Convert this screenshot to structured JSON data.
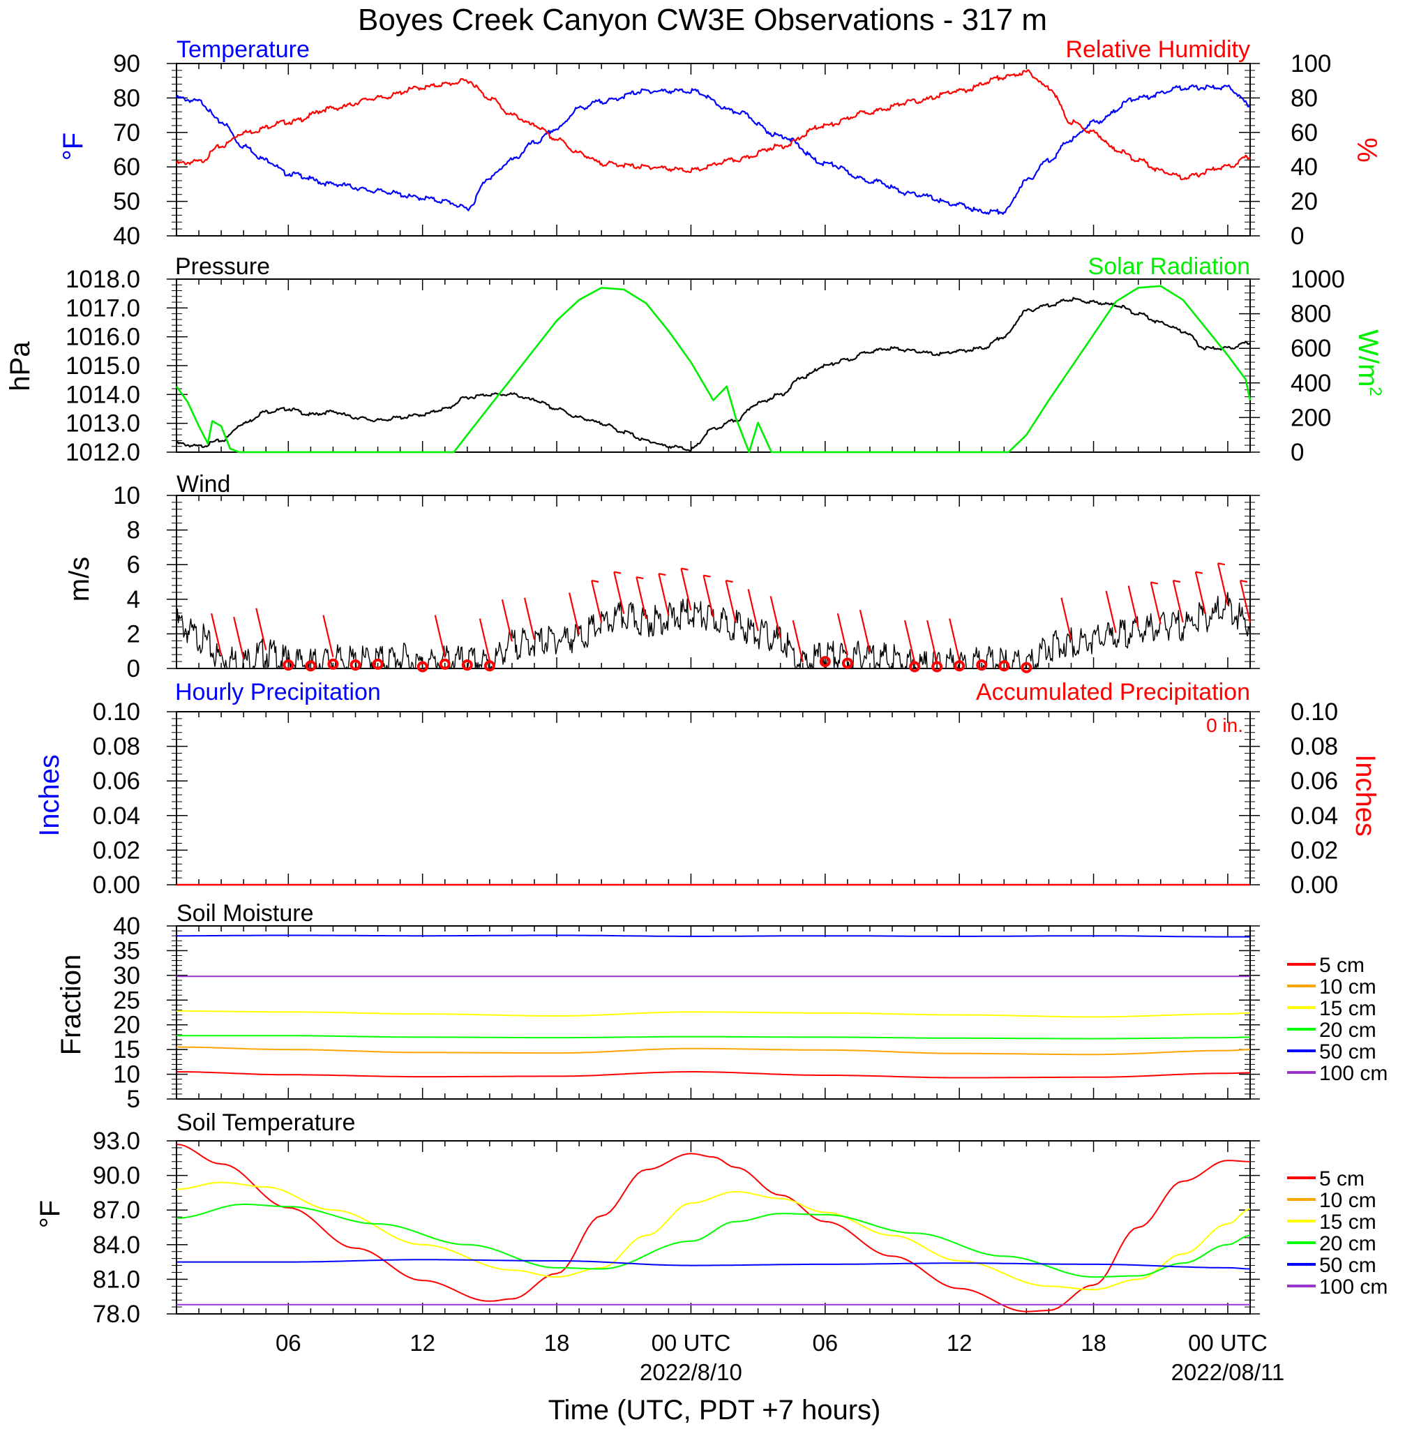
{
  "title": "Boyes Creek Canyon CW3E Observations - 317 m",
  "xaxis": {
    "title": "Time (UTC, PDT +7 hours)",
    "ticks": [
      {
        "hour": 6,
        "label": "06"
      },
      {
        "hour": 12,
        "label": "12"
      },
      {
        "hour": 18,
        "label": "18"
      },
      {
        "hour": 24,
        "label": "00 UTC"
      },
      {
        "hour": 30,
        "label": "06"
      },
      {
        "hour": 36,
        "label": "12"
      },
      {
        "hour": 42,
        "label": "18"
      },
      {
        "hour": 48,
        "label": "00 UTC"
      }
    ],
    "date_labels": [
      {
        "hour": 24,
        "label": "2022/8/10"
      },
      {
        "hour": 48,
        "label": "2022/08/11"
      }
    ],
    "range_hours": [
      1,
      49
    ]
  },
  "colors": {
    "temperature": "#0000ff",
    "humidity": "#ff0000",
    "pressure": "#000000",
    "solar": "#00ee00",
    "wind": "#000000",
    "barb": "#ff0000",
    "hourly_precip": "#0000ff",
    "accum_precip": "#ff0000",
    "d5": "#ff0000",
    "d10": "#ffa500",
    "d15": "#ffff00",
    "d20": "#00ff00",
    "d50": "#0000ff",
    "d100": "#9a32cd"
  },
  "panels": {
    "temp_rh": {
      "left_title": "Temperature",
      "right_title": "Relative Humidity",
      "left_unit": "°F",
      "right_unit": "%",
      "left_ticks": [
        "40",
        "50",
        "60",
        "70",
        "80",
        "90"
      ],
      "right_ticks": [
        "0",
        "20",
        "40",
        "60",
        "80",
        "100"
      ]
    },
    "pressure": {
      "left_title": "Pressure",
      "right_title": "Solar Radiation",
      "left_unit": "hPa",
      "right_unit": "W/m",
      "right_unit_sup": "2",
      "left_ticks": [
        "1012.0",
        "1013.0",
        "1014.0",
        "1015.0",
        "1016.0",
        "1017.0",
        "1018.0"
      ],
      "right_ticks": [
        "0",
        "200",
        "400",
        "600",
        "800",
        "1000"
      ]
    },
    "wind": {
      "title": "Wind",
      "unit": "m/s",
      "ticks": [
        "0",
        "2",
        "4",
        "6",
        "8",
        "10"
      ]
    },
    "precip": {
      "left_title": "Hourly Precipitation",
      "right_title": "Accumulated Precipitation",
      "accum_label": "0 in.",
      "left_unit": "Inches",
      "right_unit": "Inches",
      "ticks": [
        "0.00",
        "0.02",
        "0.04",
        "0.06",
        "0.08",
        "0.10"
      ]
    },
    "soil_moisture": {
      "title": "Soil Moisture",
      "unit": "Fraction",
      "ticks": [
        "5",
        "10",
        "15",
        "20",
        "25",
        "30",
        "35",
        "40"
      ],
      "legend": [
        "5 cm",
        "10 cm",
        "15 cm",
        "20 cm",
        "50 cm",
        "100 cm"
      ]
    },
    "soil_temp": {
      "title": "Soil Temperature",
      "unit": "°F",
      "ticks": [
        "78.0",
        "81.0",
        "84.0",
        "87.0",
        "90.0",
        "93.0"
      ],
      "legend": [
        "5 cm",
        "10 cm",
        "15 cm",
        "20 cm",
        "50 cm",
        "100 cm"
      ]
    }
  },
  "chart_data": [
    {
      "type": "line",
      "panel": "temp_rh",
      "xunit": "hours UTC from 2022/8/9 00",
      "ylim_left": [
        40,
        90
      ],
      "ylim_right": [
        0,
        100
      ],
      "series": [
        {
          "name": "Temperature",
          "axis": "left",
          "x": [
            1,
            2,
            3,
            4,
            5,
            6,
            8,
            10,
            12,
            13,
            14,
            15,
            16,
            17,
            18,
            19,
            20,
            22,
            24,
            26,
            28,
            30,
            32,
            34,
            36,
            37,
            38,
            39,
            40,
            41,
            42,
            44,
            46,
            48,
            49
          ],
          "y": [
            80,
            79,
            73,
            66,
            62,
            58,
            55,
            53,
            51,
            50,
            48,
            57,
            62,
            67,
            71,
            77,
            79,
            82,
            82,
            76,
            69,
            61,
            56,
            52,
            49,
            47,
            47,
            56,
            62,
            68,
            73,
            80,
            83,
            83,
            78
          ]
        },
        {
          "name": "Relative Humidity",
          "axis": "right",
          "x": [
            1,
            2,
            3,
            4,
            6,
            8,
            10,
            12,
            13,
            14,
            15,
            16,
            17,
            18,
            19,
            20,
            22,
            24,
            26,
            28,
            30,
            32,
            34,
            36,
            38,
            39,
            40,
            41,
            42,
            43,
            44,
            45,
            46,
            48,
            49
          ],
          "y": [
            42,
            43,
            52,
            60,
            66,
            74,
            80,
            86,
            88,
            90,
            80,
            70,
            64,
            56,
            48,
            42,
            40,
            38,
            44,
            52,
            64,
            72,
            78,
            84,
            92,
            95,
            86,
            66,
            60,
            50,
            44,
            38,
            34,
            40,
            46
          ]
        }
      ]
    },
    {
      "type": "line",
      "panel": "pressure",
      "xunit": "hours UTC from 2022/8/9 00",
      "ylim_left": [
        1012.0,
        1018.0
      ],
      "ylim_right": [
        0,
        1000
      ],
      "series": [
        {
          "name": "Pressure",
          "axis": "left",
          "x": [
            1,
            2,
            3,
            4,
            5,
            6,
            7,
            8,
            9,
            10,
            11,
            12,
            13,
            14,
            15,
            16,
            17,
            18,
            19,
            20,
            21,
            22,
            23,
            24,
            25,
            26,
            27,
            28,
            29,
            30,
            31,
            32,
            33,
            34,
            35,
            36,
            37,
            38,
            39,
            40,
            41,
            42,
            43,
            44,
            45,
            46,
            47,
            48,
            49
          ],
          "y": [
            1012.3,
            1012.2,
            1012.4,
            1013.0,
            1013.4,
            1013.5,
            1013.3,
            1013.4,
            1013.2,
            1013.1,
            1013.2,
            1013.3,
            1013.5,
            1013.9,
            1014.0,
            1014.0,
            1013.8,
            1013.5,
            1013.2,
            1013.0,
            1012.7,
            1012.4,
            1012.2,
            1012.1,
            1012.8,
            1013.1,
            1013.7,
            1014.0,
            1014.6,
            1015.0,
            1015.2,
            1015.5,
            1015.6,
            1015.5,
            1015.4,
            1015.5,
            1015.6,
            1016.0,
            1016.9,
            1017.1,
            1017.3,
            1017.2,
            1017.1,
            1016.8,
            1016.5,
            1016.2,
            1015.6,
            1015.6,
            1015.8
          ]
        },
        {
          "name": "Solar Radiation",
          "axis": "right",
          "x": [
            1,
            1.5,
            2,
            2.4,
            2.6,
            3,
            3.4,
            3.8,
            4,
            4.5,
            13.4,
            14,
            16,
            18,
            19,
            20,
            21,
            22,
            23,
            24,
            25,
            25.6,
            26,
            26.6,
            27,
            27.6,
            28,
            28.4,
            29,
            38.2,
            39,
            40,
            42,
            43,
            44,
            45,
            46,
            47,
            48,
            48.8,
            49
          ],
          "y": [
            380,
            290,
            150,
            50,
            180,
            150,
            20,
            0,
            0,
            0,
            0,
            100,
            430,
            760,
            880,
            950,
            940,
            860,
            700,
            520,
            300,
            380,
            200,
            0,
            170,
            0,
            0,
            0,
            0,
            0,
            100,
            300,
            680,
            870,
            950,
            960,
            880,
            720,
            560,
            420,
            300
          ]
        }
      ]
    },
    {
      "type": "line",
      "panel": "wind",
      "xunit": "hours UTC from 2022/8/9 00",
      "ylim": [
        0,
        10
      ],
      "series": [
        {
          "name": "Wind",
          "x": [
            1,
            2,
            3,
            4,
            5,
            6,
            7,
            8,
            9,
            10,
            11,
            12,
            13,
            14,
            15,
            16,
            17,
            18,
            19,
            20,
            21,
            22,
            23,
            24,
            25,
            26,
            27,
            28,
            29,
            30,
            31,
            32,
            33,
            34,
            35,
            36,
            37,
            38,
            39,
            40,
            41,
            42,
            43,
            44,
            45,
            46,
            47,
            48,
            49
          ],
          "y": [
            2.6,
            1.8,
            0.6,
            0.4,
            0.9,
            0.4,
            0.3,
            0.5,
            0.4,
            0.5,
            0.6,
            0.2,
            0.5,
            0.4,
            0.3,
            1.4,
            1.5,
            1.7,
            1.8,
            2.5,
            3.0,
            2.7,
            2.9,
            3.2,
            2.8,
            2.5,
            2.0,
            1.6,
            0.2,
            0.8,
            0.6,
            0.8,
            0.5,
            0.2,
            0.2,
            0.3,
            0.4,
            0.3,
            0.1,
            1.3,
            1.5,
            1.7,
            1.9,
            2.2,
            2.4,
            2.5,
            3.0,
            3.5,
            2.5
          ]
        }
      ],
      "barb_hours": [
        3,
        4,
        5,
        8,
        13,
        15,
        16,
        17,
        19,
        20,
        21,
        22,
        23,
        24,
        25,
        26,
        27,
        28,
        29,
        31,
        32,
        34,
        35,
        36,
        41,
        43,
        44,
        45,
        46,
        47,
        48,
        49
      ],
      "calm_hours": [
        6,
        7,
        8,
        9,
        10,
        12,
        13,
        14,
        15,
        30,
        31,
        34,
        35,
        36,
        37,
        38,
        39
      ]
    },
    {
      "type": "line",
      "panel": "precip",
      "ylim": [
        0,
        0.1
      ],
      "series": [
        {
          "name": "Hourly Precipitation",
          "x": [
            1,
            49
          ],
          "y": [
            0,
            0
          ]
        },
        {
          "name": "Accumulated Precipitation",
          "x": [
            1,
            49
          ],
          "y": [
            0,
            0
          ]
        }
      ]
    },
    {
      "type": "line",
      "panel": "soil_moisture",
      "xunit": "hours UTC from 2022/8/9 00",
      "ylim": [
        5,
        40
      ],
      "series": [
        {
          "name": "5 cm",
          "x": [
            1,
            6,
            12,
            18,
            24,
            30,
            36,
            42,
            48,
            49
          ],
          "y": [
            10.5,
            9.9,
            9.5,
            9.6,
            10.5,
            9.8,
            9.3,
            9.4,
            10.2,
            10.3
          ]
        },
        {
          "name": "10 cm",
          "x": [
            1,
            6,
            12,
            18,
            24,
            30,
            36,
            42,
            48,
            49
          ],
          "y": [
            15.5,
            15.0,
            14.4,
            14.3,
            15.2,
            14.9,
            14.2,
            14.0,
            14.8,
            15.0
          ]
        },
        {
          "name": "15 cm",
          "x": [
            1,
            6,
            12,
            18,
            24,
            30,
            36,
            42,
            48,
            49
          ],
          "y": [
            22.8,
            22.6,
            22.2,
            21.8,
            22.6,
            22.4,
            22.0,
            21.6,
            22.2,
            22.4
          ]
        },
        {
          "name": "20 cm",
          "x": [
            1,
            6,
            12,
            18,
            24,
            30,
            36,
            42,
            48,
            49
          ],
          "y": [
            17.8,
            17.8,
            17.5,
            17.4,
            17.6,
            17.5,
            17.3,
            17.2,
            17.4,
            17.5
          ]
        },
        {
          "name": "50 cm",
          "x": [
            1,
            6,
            12,
            18,
            24,
            30,
            36,
            42,
            48,
            49
          ],
          "y": [
            38.0,
            38.1,
            38.0,
            38.1,
            37.9,
            38.0,
            37.9,
            38.0,
            37.8,
            37.8
          ]
        },
        {
          "name": "100 cm",
          "x": [
            1,
            6,
            12,
            18,
            24,
            30,
            36,
            42,
            48,
            49
          ],
          "y": [
            29.8,
            29.8,
            29.8,
            29.8,
            29.8,
            29.8,
            29.8,
            29.8,
            29.8,
            29.8
          ]
        }
      ]
    },
    {
      "type": "line",
      "panel": "soil_temp",
      "xunit": "hours UTC from 2022/8/9 00",
      "ylim": [
        78,
        93
      ],
      "series": [
        {
          "name": "5 cm",
          "x": [
            1,
            3,
            6,
            9,
            12,
            15,
            16,
            18,
            20,
            22,
            24,
            25,
            26,
            28,
            30,
            33,
            36,
            39,
            40,
            42,
            44,
            46,
            48,
            49
          ],
          "y": [
            92.7,
            91.0,
            87.2,
            83.7,
            80.9,
            79.1,
            79.3,
            81.5,
            86.5,
            90.5,
            91.9,
            91.6,
            90.7,
            88.3,
            86.0,
            83.0,
            80.2,
            78.2,
            78.3,
            80.5,
            85.5,
            89.5,
            91.3,
            91.2
          ]
        },
        {
          "name": "10 cm",
          "x": [
            1,
            49
          ],
          "y": [
            null,
            null
          ]
        },
        {
          "name": "15 cm",
          "x": [
            1,
            3,
            5,
            8,
            12,
            16,
            18,
            20,
            22,
            24,
            26,
            28,
            30,
            33,
            36,
            40,
            42,
            44,
            46,
            48,
            49
          ],
          "y": [
            88.8,
            89.4,
            89.0,
            87.0,
            84.0,
            81.8,
            81.2,
            82.0,
            84.8,
            87.6,
            88.6,
            88.0,
            86.8,
            84.8,
            82.6,
            80.4,
            80.1,
            81.0,
            83.2,
            85.8,
            87.1
          ]
        },
        {
          "name": "20 cm",
          "x": [
            1,
            4,
            6,
            10,
            14,
            18,
            20,
            24,
            26,
            28,
            30,
            34,
            38,
            42,
            44,
            46,
            48,
            49
          ],
          "y": [
            86.3,
            87.5,
            87.3,
            85.8,
            84.0,
            82.0,
            81.9,
            84.3,
            86.0,
            86.7,
            86.6,
            85.0,
            83.0,
            81.2,
            81.3,
            82.4,
            84.0,
            84.8
          ]
        },
        {
          "name": "50 cm",
          "x": [
            1,
            6,
            12,
            18,
            24,
            30,
            36,
            42,
            48,
            49
          ],
          "y": [
            82.5,
            82.5,
            82.7,
            82.6,
            82.2,
            82.3,
            82.4,
            82.3,
            82.0,
            81.9
          ]
        },
        {
          "name": "100 cm",
          "x": [
            1,
            49
          ],
          "y": [
            78.8,
            78.8
          ]
        }
      ]
    }
  ]
}
